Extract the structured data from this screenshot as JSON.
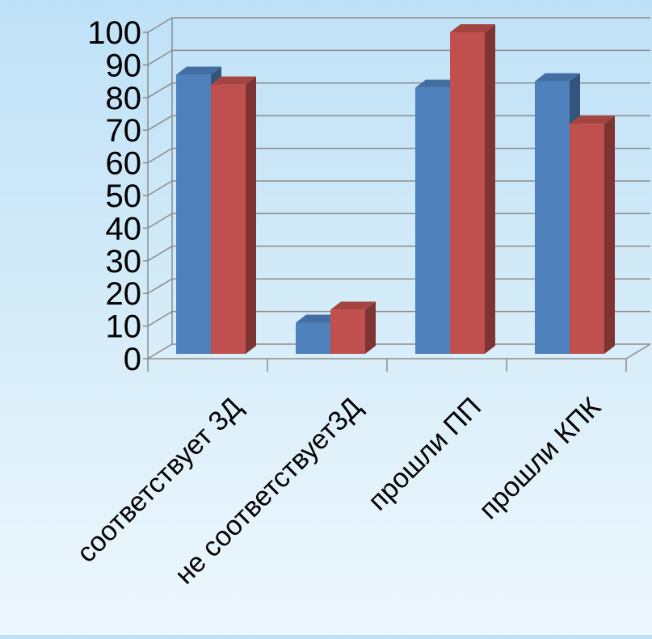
{
  "chart_data": {
    "type": "bar",
    "title": "",
    "xlabel": "",
    "ylabel": "",
    "categories": [
      "соответствует 3Д",
      "не соответствует3Д",
      "прошли ПП",
      "прошли КПК"
    ],
    "series": [
      {
        "values": [
          87,
          11,
          83,
          85
        ],
        "color": "#4f81bd"
      },
      {
        "values": [
          84,
          15,
          100,
          72
        ],
        "color": "#c0504d"
      }
    ],
    "ylim": [
      0,
      100
    ],
    "yticks": [
      0,
      10,
      20,
      30,
      40,
      50,
      60,
      70,
      80,
      90,
      100
    ],
    "grid": true,
    "legend": "none",
    "style": "3d-clustered-column",
    "colors": {
      "series_1": "#4f81bd",
      "series_2": "#c0504d",
      "grid": "#8c8c8c",
      "background_top": "#bfe1f7",
      "background_bottom": "#edf7fd"
    }
  }
}
